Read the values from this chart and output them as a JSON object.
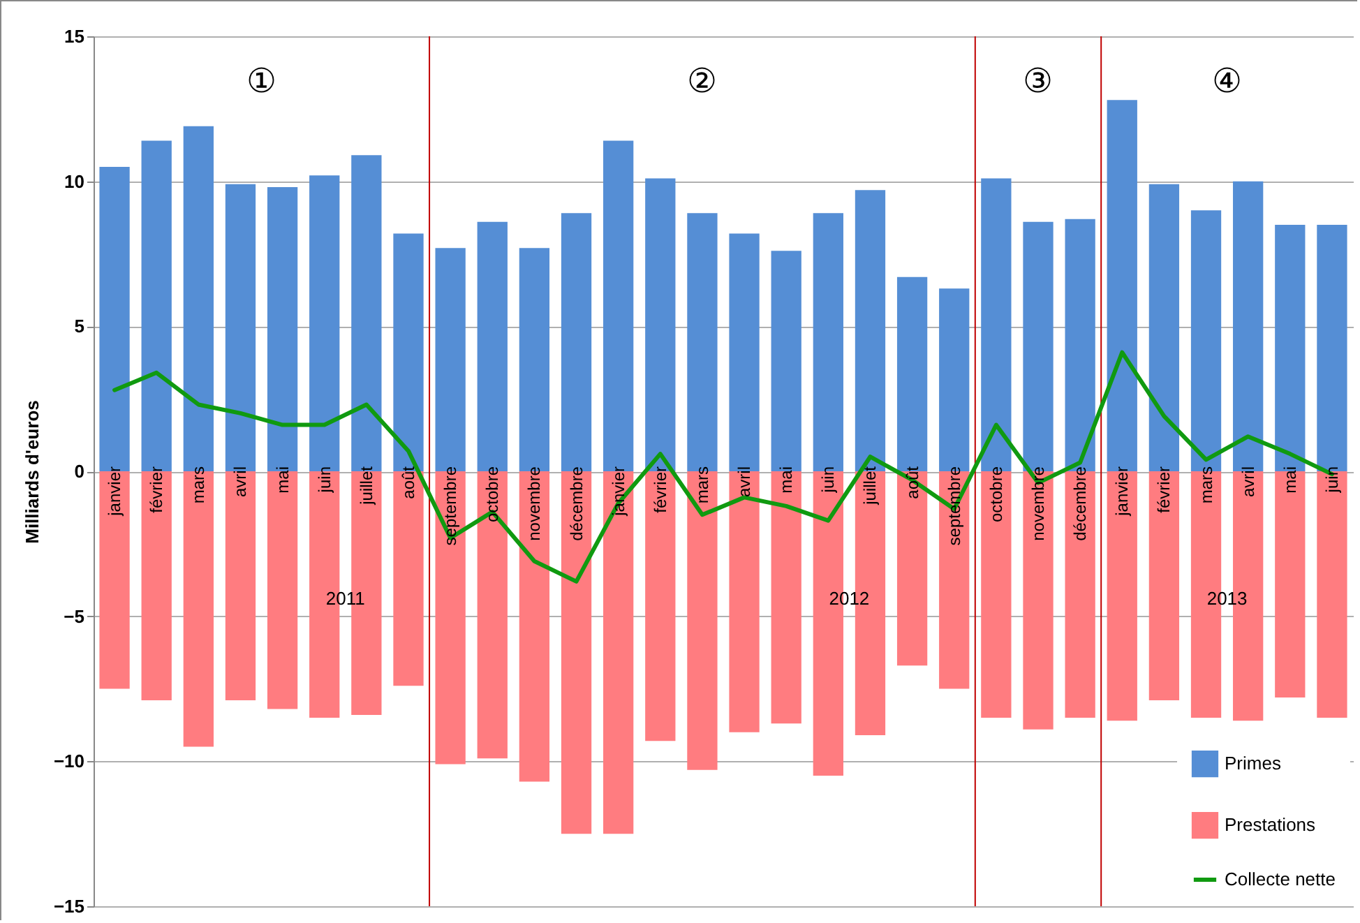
{
  "chart_data": {
    "type": "bar",
    "ylabel": "Milliards d'euros",
    "categories": [
      "janvier",
      "février",
      "mars",
      "avril",
      "mai",
      "juin",
      "juillet",
      "août",
      "septembre",
      "octobre",
      "novembre",
      "décembre",
      "janvier",
      "février",
      "mars",
      "avril",
      "mai",
      "juin",
      "juillet",
      "août",
      "septembre",
      "octobre",
      "novembre",
      "décembre",
      "janvier",
      "février",
      "mars",
      "avril",
      "mai",
      "juin"
    ],
    "series": [
      {
        "name": "Primes",
        "color": "#558ed5",
        "values": [
          10.5,
          11.4,
          11.9,
          9.9,
          9.8,
          10.2,
          10.9,
          8.2,
          7.7,
          8.6,
          7.7,
          8.9,
          11.4,
          10.1,
          8.9,
          8.2,
          7.6,
          8.9,
          9.7,
          6.7,
          6.3,
          10.1,
          8.6,
          8.7,
          12.8,
          9.9,
          9.0,
          10.0,
          8.5,
          8.5
        ]
      },
      {
        "name": "Prestations",
        "color": "#ff7c80",
        "values": [
          -7.5,
          -7.9,
          -9.5,
          -7.9,
          -8.2,
          -8.5,
          -8.4,
          -7.4,
          -10.1,
          -9.9,
          -10.7,
          -12.5,
          -12.5,
          -9.3,
          -10.3,
          -9.0,
          -8.7,
          -10.5,
          -9.1,
          -6.7,
          -7.5,
          -8.5,
          -8.9,
          -8.5,
          -8.6,
          -7.9,
          -8.5,
          -8.6,
          -7.8,
          -8.5
        ]
      },
      {
        "name": "Collecte nette",
        "type": "line",
        "color": "#109a10",
        "values": [
          2.8,
          3.4,
          2.3,
          2.0,
          1.6,
          1.6,
          2.3,
          0.7,
          -2.3,
          -1.4,
          -3.1,
          -3.8,
          -1.1,
          0.6,
          -1.5,
          -0.9,
          -1.2,
          -1.7,
          0.5,
          -0.3,
          -1.3,
          1.6,
          -0.4,
          0.3,
          4.1,
          1.9,
          0.4,
          1.2,
          0.6,
          -0.1
        ]
      }
    ],
    "ylim": [
      -15,
      15
    ],
    "yticks": [
      -15,
      -10,
      -5,
      0,
      5,
      10,
      15
    ],
    "grid": "y",
    "legend": "bottom right",
    "stacked": true,
    "annotations": [
      "①",
      "②",
      "③",
      "④",
      "2011",
      "2012",
      "2013"
    ]
  }
}
